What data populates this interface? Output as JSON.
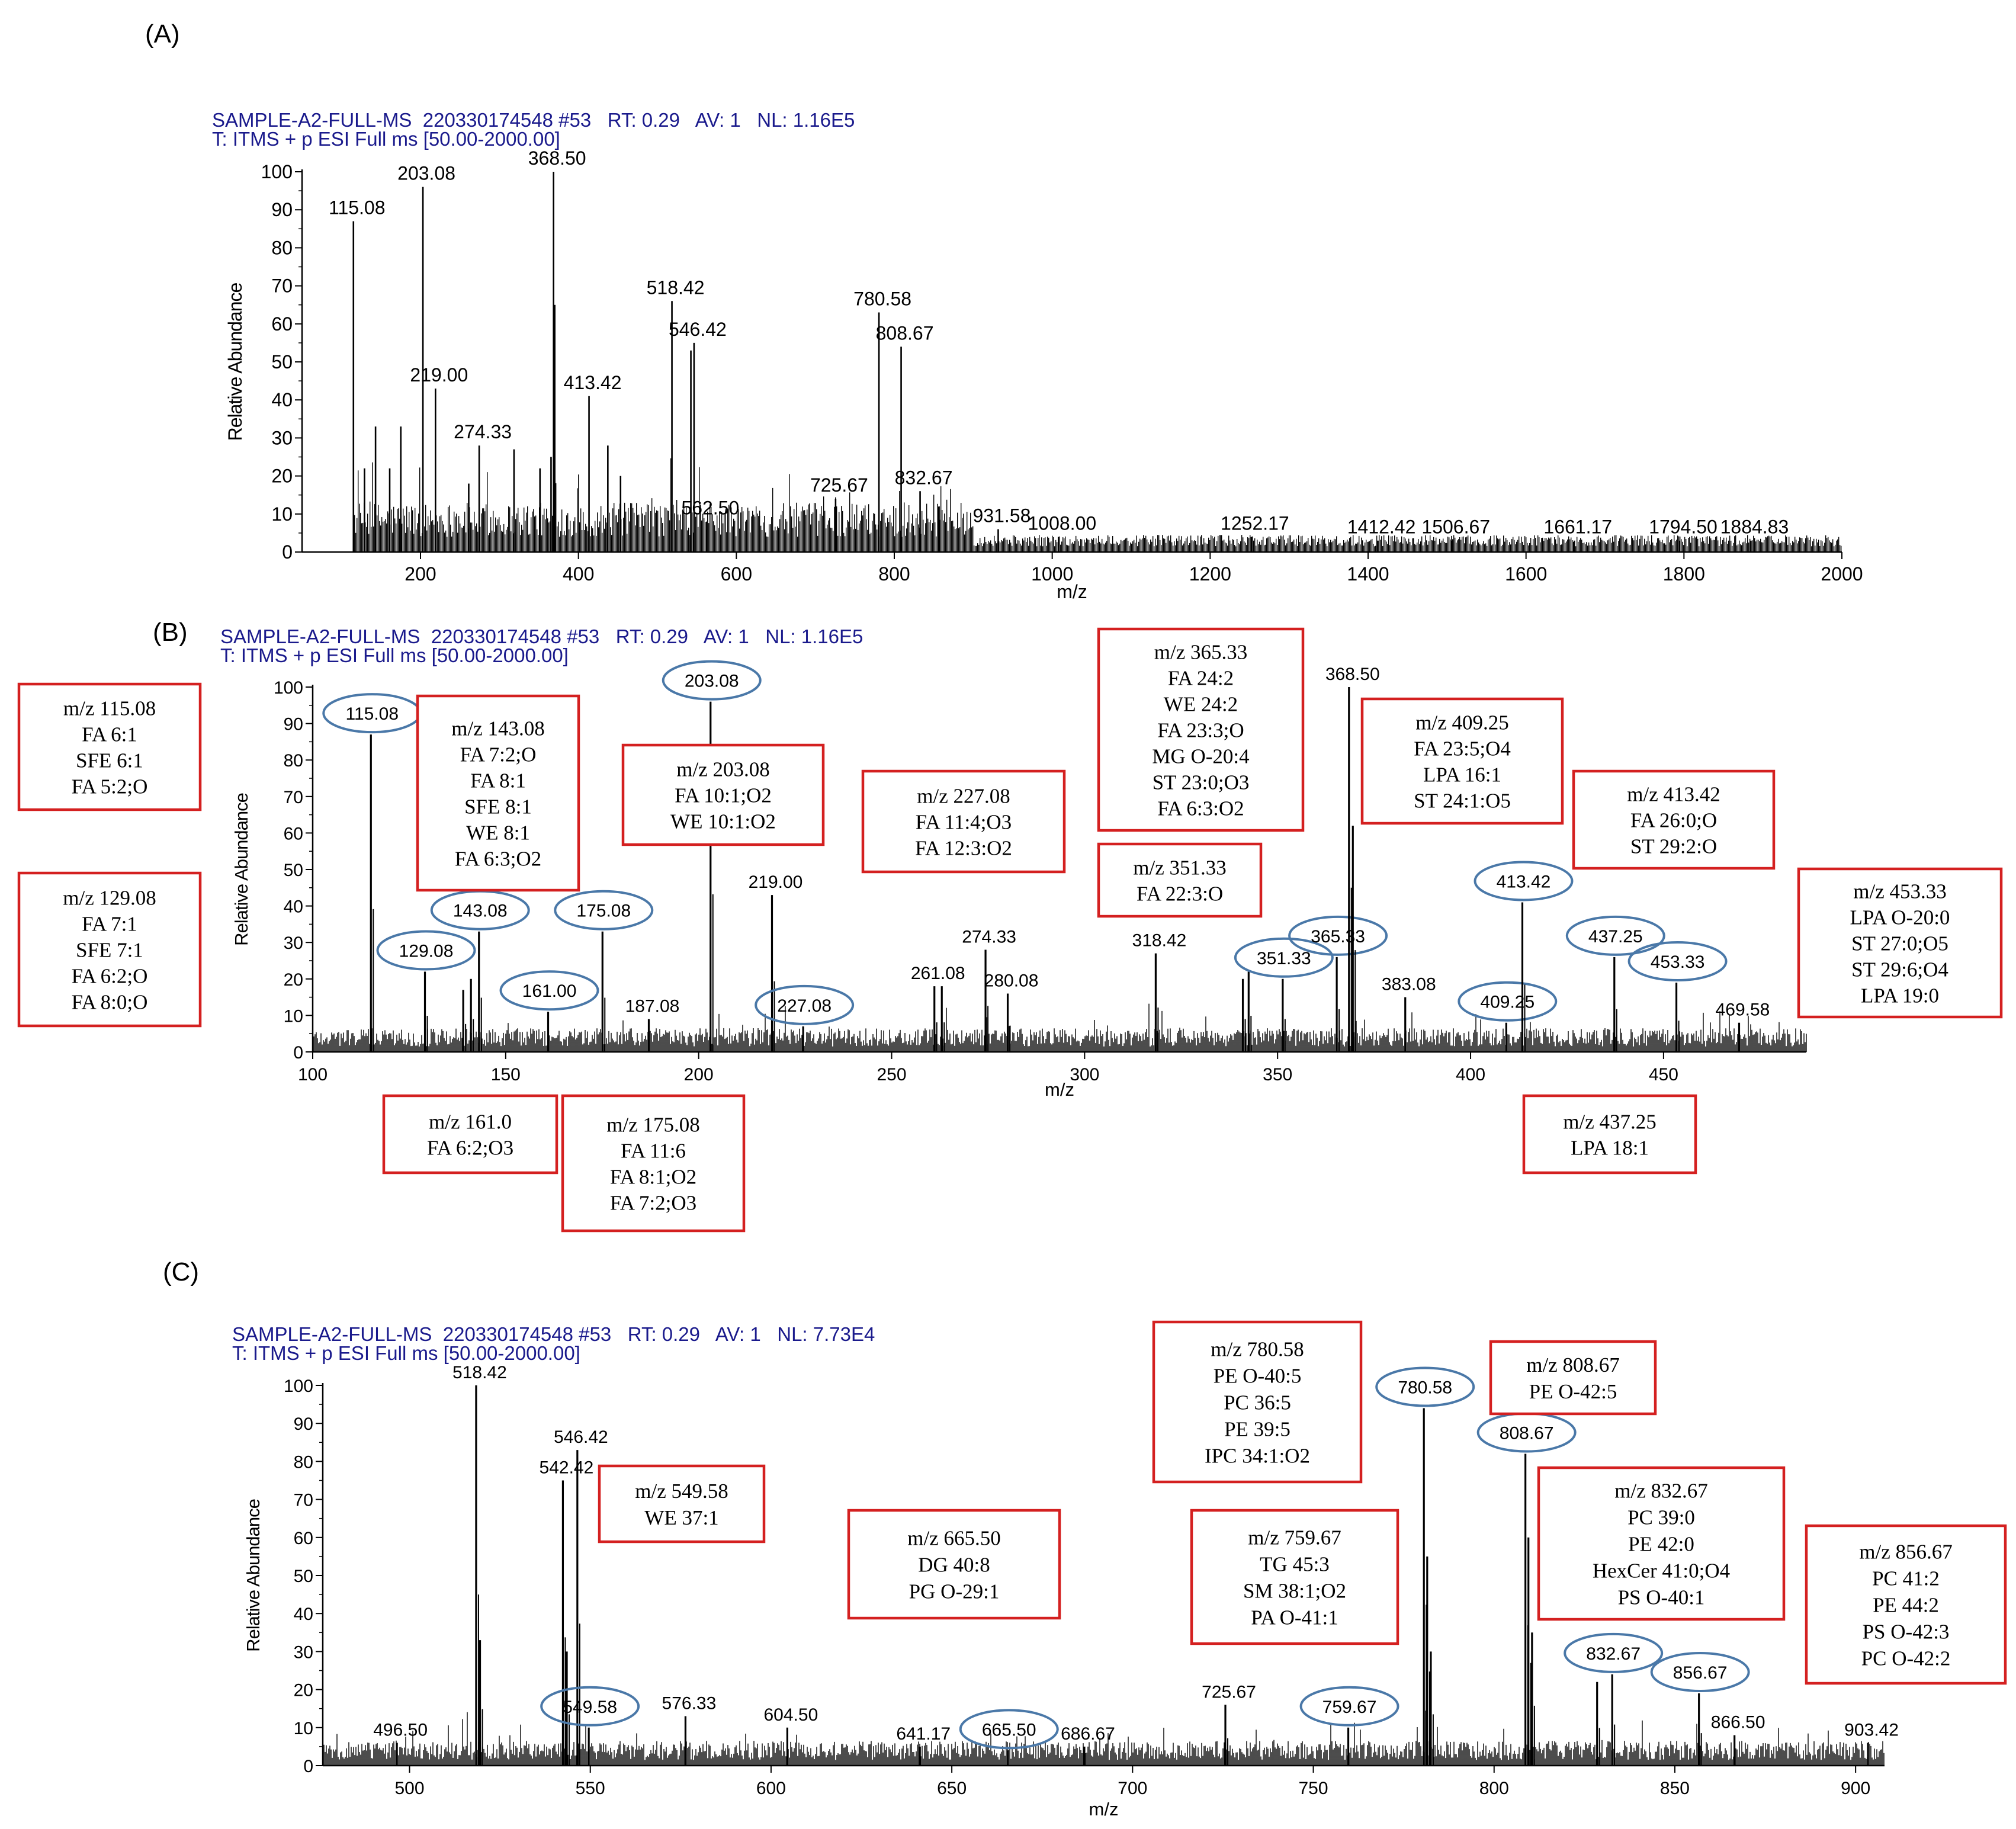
{
  "figure": {
    "panels": [
      {
        "letter": "(A)",
        "header1": "SAMPLE-A2-FULL-MS  220330174548 #53   RT: 0.29   AV: 1   NL: 1.16E5",
        "header2": "T: ITMS + p ESI Full ms [50.00-2000.00]"
      },
      {
        "letter": "(B)",
        "header1": "SAMPLE-A2-FULL-MS  220330174548 #53   RT: 0.29   AV: 1   NL: 1.16E5",
        "header2": "T: ITMS + p ESI Full ms [50.00-2000.00]"
      },
      {
        "letter": "(C)",
        "header1": "SAMPLE-A2-FULL-MS  220330174548 #53   RT: 0.29   AV: 1   NL: 7.73E4",
        "header2": "T: ITMS + p ESI Full ms [50.00-2000.00]"
      }
    ]
  },
  "colors": {
    "header": "#1a1a8c",
    "box": "#d42020",
    "ellipse": "#4a78a8",
    "line": "#000000",
    "tick_green": "#4caf50"
  },
  "chart_data": [
    {
      "type": "line",
      "panel": "A",
      "xlabel": "m/z",
      "ylabel": "Relative Abundance",
      "xlim": [
        50,
        2000
      ],
      "ylim": [
        0,
        100
      ],
      "xticks": [
        200,
        400,
        600,
        800,
        1000,
        1200,
        1400,
        1600,
        1800,
        2000
      ],
      "yticks": [
        0,
        10,
        20,
        30,
        40,
        50,
        60,
        70,
        80,
        90,
        100
      ],
      "peaks": [
        {
          "mz": 115.08,
          "y": 87,
          "label": "115.08"
        },
        {
          "mz": 129.08,
          "y": 22
        },
        {
          "mz": 143.08,
          "y": 33
        },
        {
          "mz": 161.0,
          "y": 22
        },
        {
          "mz": 175.08,
          "y": 33
        },
        {
          "mz": 203.08,
          "y": 96,
          "label": "203.08"
        },
        {
          "mz": 219.0,
          "y": 43,
          "label": "219.00"
        },
        {
          "mz": 261.08,
          "y": 18
        },
        {
          "mz": 274.33,
          "y": 28,
          "label": "274.33"
        },
        {
          "mz": 318.42,
          "y": 27
        },
        {
          "mz": 351.33,
          "y": 22
        },
        {
          "mz": 365.33,
          "y": 25
        },
        {
          "mz": 368.5,
          "y": 100,
          "label": "368.50"
        },
        {
          "mz": 370.0,
          "y": 65
        },
        {
          "mz": 413.42,
          "y": 41,
          "label": "413.42"
        },
        {
          "mz": 437.25,
          "y": 28
        },
        {
          "mz": 453.33,
          "y": 20
        },
        {
          "mz": 518.42,
          "y": 66,
          "label": "518.42"
        },
        {
          "mz": 542.42,
          "y": 53
        },
        {
          "mz": 546.42,
          "y": 55,
          "label": "546.42"
        },
        {
          "mz": 562.5,
          "y": 8,
          "label": "562.50"
        },
        {
          "mz": 725.67,
          "y": 14,
          "label": "725.67"
        },
        {
          "mz": 780.58,
          "y": 63,
          "label": "780.58"
        },
        {
          "mz": 808.67,
          "y": 54,
          "label": "808.67"
        },
        {
          "mz": 832.67,
          "y": 16,
          "label": "832.67"
        },
        {
          "mz": 856.67,
          "y": 12
        },
        {
          "mz": 931.58,
          "y": 6,
          "label": "931.58"
        },
        {
          "mz": 1008.0,
          "y": 4,
          "label": "1008.00"
        },
        {
          "mz": 1252.17,
          "y": 4,
          "label": "1252.17"
        },
        {
          "mz": 1412.42,
          "y": 3,
          "label": "1412.42"
        },
        {
          "mz": 1506.67,
          "y": 3,
          "label": "1506.67"
        },
        {
          "mz": 1661.17,
          "y": 3,
          "label": "1661.17"
        },
        {
          "mz": 1794.5,
          "y": 3,
          "label": "1794.50"
        },
        {
          "mz": 1884.83,
          "y": 3,
          "label": "1884.83"
        }
      ]
    },
    {
      "type": "line",
      "panel": "B",
      "xlabel": "m/z",
      "ylabel": "Relative Abundance",
      "xlim": [
        100,
        487
      ],
      "ylim": [
        0,
        100
      ],
      "xticks": [
        100,
        150,
        200,
        250,
        300,
        350,
        400,
        450
      ],
      "yticks": [
        0,
        10,
        20,
        30,
        40,
        50,
        60,
        70,
        80,
        90,
        100
      ],
      "peaks": [
        {
          "mz": 115.08,
          "y": 87,
          "circle": "115.08"
        },
        {
          "mz": 129.08,
          "y": 22,
          "circle": "129.08"
        },
        {
          "mz": 139.0,
          "y": 17
        },
        {
          "mz": 141.0,
          "y": 20
        },
        {
          "mz": 143.08,
          "y": 33,
          "circle": "143.08"
        },
        {
          "mz": 161.0,
          "y": 11,
          "circle": "161.00"
        },
        {
          "mz": 175.08,
          "y": 33,
          "circle": "175.08"
        },
        {
          "mz": 187.08,
          "y": 9,
          "label": "187.08"
        },
        {
          "mz": 203.08,
          "y": 96,
          "circle": "203.08"
        },
        {
          "mz": 219.0,
          "y": 43,
          "label": "219.00"
        },
        {
          "mz": 227.08,
          "y": 7,
          "circle": "227.08"
        },
        {
          "mz": 261.08,
          "y": 18,
          "label": "261.08"
        },
        {
          "mz": 263.0,
          "y": 18
        },
        {
          "mz": 274.33,
          "y": 28,
          "label": "274.33"
        },
        {
          "mz": 280.08,
          "y": 16,
          "label": "280.08"
        },
        {
          "mz": 318.42,
          "y": 27,
          "label": "318.42"
        },
        {
          "mz": 341.0,
          "y": 20
        },
        {
          "mz": 342.5,
          "y": 22
        },
        {
          "mz": 351.33,
          "y": 20,
          "circle": "351.33"
        },
        {
          "mz": 365.33,
          "y": 26,
          "circle": "365.33"
        },
        {
          "mz": 368.5,
          "y": 100,
          "label": "368.50"
        },
        {
          "mz": 369.5,
          "y": 62
        },
        {
          "mz": 383.08,
          "y": 15,
          "label": "383.08"
        },
        {
          "mz": 409.25,
          "y": 8,
          "circle": "409.25"
        },
        {
          "mz": 413.42,
          "y": 41,
          "circle": "413.42"
        },
        {
          "mz": 437.25,
          "y": 26,
          "circle": "437.25"
        },
        {
          "mz": 453.33,
          "y": 19,
          "circle": "453.33"
        },
        {
          "mz": 469.58,
          "y": 8,
          "label": "469.58"
        }
      ],
      "annotations": [
        {
          "lines": [
            "m/z 115.08",
            "FA 6:1",
            "SFE 6:1",
            "FA 5:2;O"
          ]
        },
        {
          "lines": [
            "m/z 129.08",
            "FA 7:1",
            "SFE 7:1",
            "FA 6:2;O",
            "FA 8:0;O"
          ]
        },
        {
          "lines": [
            "m/z 143.08",
            "FA 7:2;O",
            "FA 8:1",
            "SFE 8:1",
            "WE 8:1",
            "FA 6:3;O2"
          ]
        },
        {
          "lines": [
            "m/z 203.08",
            "FA 10:1;O2",
            "WE 10:1:O2"
          ]
        },
        {
          "lines": [
            "m/z 227.08",
            "FA 11:4;O3",
            "FA 12:3:O2"
          ]
        },
        {
          "lines": [
            "m/z 365.33",
            "FA 24:2",
            "WE 24:2",
            "FA 23:3;O",
            "MG O-20:4",
            "ST 23:0;O3",
            "FA 6:3:O2"
          ]
        },
        {
          "lines": [
            "m/z 351.33",
            "FA 22:3:O"
          ]
        },
        {
          "lines": [
            "m/z 409.25",
            "FA 23:5;O4",
            "LPA 16:1",
            "ST 24:1:O5"
          ]
        },
        {
          "lines": [
            "m/z 413.42",
            "FA 26:0;O",
            "ST 29:2:O"
          ]
        },
        {
          "lines": [
            "m/z 453.33",
            "LPA O-20:0",
            "ST 27:0;O5",
            "ST 29:6;O4",
            "LPA 19:0"
          ]
        },
        {
          "lines": [
            "m/z 161.0",
            "FA 6:2;O3"
          ]
        },
        {
          "lines": [
            "m/z 175.08",
            "FA 11:6",
            "FA 8:1;O2",
            "FA 7:2;O3"
          ]
        },
        {
          "lines": [
            "m/z 437.25",
            "LPA 18:1"
          ]
        }
      ]
    },
    {
      "type": "line",
      "panel": "C",
      "xlabel": "m/z",
      "ylabel": "Relative Abundance",
      "xlim": [
        476,
        908
      ],
      "ylim": [
        0,
        100
      ],
      "xticks": [
        500,
        550,
        600,
        650,
        700,
        750,
        800,
        850,
        900
      ],
      "yticks": [
        0,
        10,
        20,
        30,
        40,
        50,
        60,
        70,
        80,
        90,
        100
      ],
      "peaks": [
        {
          "mz": 496.5,
          "y": 6,
          "label": "496.50"
        },
        {
          "mz": 518.42,
          "y": 100,
          "label": "518.42"
        },
        {
          "mz": 519.5,
          "y": 33
        },
        {
          "mz": 542.42,
          "y": 75,
          "label": "542.42"
        },
        {
          "mz": 543.5,
          "y": 30
        },
        {
          "mz": 546.42,
          "y": 83,
          "label": "546.42"
        },
        {
          "mz": 549.58,
          "y": 10,
          "circle": "549.58"
        },
        {
          "mz": 576.33,
          "y": 13,
          "label": "576.33"
        },
        {
          "mz": 604.5,
          "y": 10,
          "label": "604.50"
        },
        {
          "mz": 641.17,
          "y": 5,
          "label": "641.17"
        },
        {
          "mz": 665.5,
          "y": 4,
          "circle": "665.50"
        },
        {
          "mz": 686.67,
          "y": 5,
          "label": "686.67"
        },
        {
          "mz": 725.67,
          "y": 16,
          "label": "725.67"
        },
        {
          "mz": 759.67,
          "y": 10,
          "circle": "759.67"
        },
        {
          "mz": 780.58,
          "y": 94,
          "circle": "780.58"
        },
        {
          "mz": 781.5,
          "y": 55
        },
        {
          "mz": 782.5,
          "y": 30
        },
        {
          "mz": 808.67,
          "y": 82,
          "circle": "808.67"
        },
        {
          "mz": 809.5,
          "y": 60
        },
        {
          "mz": 810.5,
          "y": 35
        },
        {
          "mz": 828.5,
          "y": 22
        },
        {
          "mz": 832.67,
          "y": 24,
          "circle": "832.67"
        },
        {
          "mz": 856.67,
          "y": 19,
          "circle": "856.67"
        },
        {
          "mz": 866.5,
          "y": 8,
          "label": "866.50"
        },
        {
          "mz": 903.42,
          "y": 6,
          "label": "903.42"
        }
      ],
      "annotations": [
        {
          "lines": [
            "m/z 549.58",
            "WE 37:1"
          ]
        },
        {
          "lines": [
            "m/z 665.50",
            "DG 40:8",
            "PG O-29:1"
          ]
        },
        {
          "lines": [
            "m/z 780.58",
            "PE O-40:5",
            "PC 36:5",
            "PE 39:5",
            "IPC 34:1:O2"
          ]
        },
        {
          "lines": [
            "m/z 759.67",
            "TG 45:3",
            "SM 38:1;O2",
            "PA O-41:1"
          ]
        },
        {
          "lines": [
            "m/z 808.67",
            "PE O-42:5"
          ]
        },
        {
          "lines": [
            "m/z 832.67",
            "PC 39:0",
            "PE 42:0",
            "HexCer 41:0;O4",
            "PS O-40:1"
          ]
        },
        {
          "lines": [
            "m/z 856.67",
            "PC 41:2",
            "PE 44:2",
            "PS O-42:3",
            "PC O-42:2"
          ]
        }
      ]
    }
  ]
}
